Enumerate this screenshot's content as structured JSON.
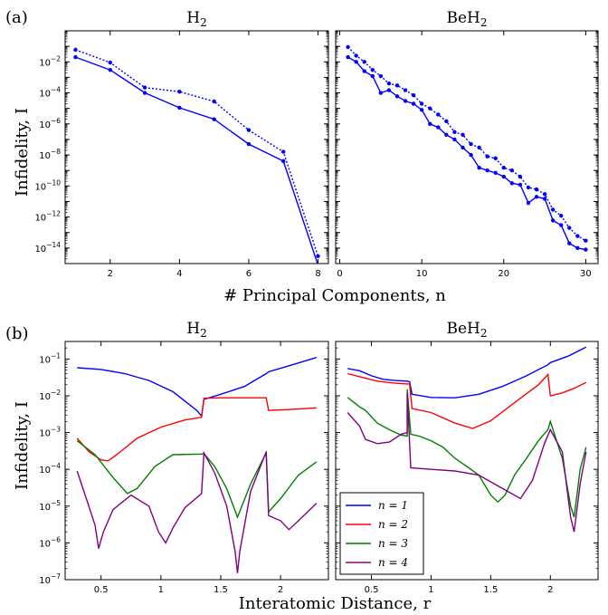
{
  "figure": {
    "panel_a_label": "(a)",
    "panel_b_label": "(b)",
    "ylabel": "Infidelity, I",
    "xlabel_a": "# Principal Components, n",
    "xlabel_b": "Interatomic Distance, r"
  },
  "chart_data": [
    {
      "id": "a-H2",
      "type": "line",
      "title": "H2",
      "yscale": "log",
      "xlim": [
        0.7,
        8.3
      ],
      "ylim": [
        1e-15,
        1
      ],
      "xticks": [
        2,
        4,
        6,
        8
      ],
      "yticks": [
        1e-14,
        1e-12,
        1e-10,
        1e-08,
        1e-06,
        0.0001,
        0.01
      ],
      "series": [
        {
          "style": "solid",
          "color": "#0000ff",
          "marker": true,
          "x": [
            1,
            2,
            3,
            4,
            5,
            6,
            7,
            8
          ],
          "y": [
            0.02,
            0.003,
            0.0001,
            1.1e-05,
            2e-06,
            5e-08,
            4e-09,
            8e-16
          ]
        },
        {
          "style": "dotted",
          "color": "#0000ff",
          "marker": true,
          "x": [
            1,
            2,
            3,
            4,
            5,
            6,
            7,
            8
          ],
          "y": [
            0.06,
            0.009,
            0.00022,
            0.00012,
            2.8e-05,
            4e-07,
            1.6e-08,
            3e-15
          ]
        }
      ]
    },
    {
      "id": "a-BeH2",
      "type": "line",
      "title": "BeH2",
      "yscale": "log",
      "xlim": [
        -0.5,
        31.5
      ],
      "ylim": [
        1e-15,
        1
      ],
      "xticks": [
        0,
        10,
        20,
        30
      ],
      "yticks": [],
      "series": [
        {
          "style": "solid",
          "color": "#0000ff",
          "marker": true,
          "x": [
            1,
            2,
            3,
            4,
            5,
            6,
            7,
            8,
            9,
            10,
            11,
            12,
            13,
            14,
            15,
            16,
            17,
            18,
            19,
            20,
            21,
            22,
            23,
            24,
            25,
            26,
            27,
            28,
            29,
            30
          ],
          "y": [
            0.02,
            0.01,
            0.0025,
            0.0012,
            0.0001,
            0.00015,
            6e-05,
            3e-05,
            2e-05,
            8e-06,
            1e-06,
            6e-07,
            2e-07,
            1e-07,
            3e-08,
            1e-08,
            1.5e-09,
            1e-09,
            7e-10,
            4e-10,
            1.5e-10,
            1.2e-10,
            8e-12,
            2e-11,
            1.5e-11,
            6e-13,
            3e-13,
            2e-14,
            1e-14,
            8e-15
          ]
        },
        {
          "style": "dotted",
          "color": "#0000ff",
          "marker": true,
          "x": [
            1,
            2,
            3,
            4,
            5,
            6,
            7,
            8,
            9,
            10,
            11,
            12,
            13,
            14,
            15,
            16,
            17,
            18,
            19,
            20,
            21,
            22,
            23,
            24,
            25,
            26,
            27,
            28,
            29,
            30
          ],
          "y": [
            0.09,
            0.025,
            0.01,
            0.003,
            0.0012,
            0.0004,
            0.0003,
            0.00015,
            7e-05,
            2e-05,
            1e-05,
            4e-06,
            1.5e-06,
            3e-07,
            2e-07,
            5e-08,
            3e-08,
            8e-09,
            6e-09,
            1.5e-09,
            1e-09,
            4e-10,
            8e-11,
            6e-11,
            3e-11,
            3e-12,
            1.2e-12,
            2e-13,
            6e-14,
            3e-14
          ]
        }
      ]
    },
    {
      "id": "b-H2",
      "type": "line",
      "title": "H2",
      "yscale": "log",
      "xlim": [
        0.2,
        2.4
      ],
      "ylim": [
        1e-07,
        0.3
      ],
      "xticks": [
        0.5,
        1.0,
        1.5,
        2.0
      ],
      "yticks": [
        1e-07,
        1e-06,
        1e-05,
        0.0001,
        0.001,
        0.01,
        0.1
      ],
      "series": [
        {
          "name": "n = 1",
          "color": "#0000ff",
          "x": [
            0.3,
            0.5,
            0.7,
            0.9,
            1.1,
            1.3,
            1.34,
            1.36,
            1.5,
            1.7,
            1.88,
            1.9,
            2.1,
            2.3
          ],
          "y": [
            0.058,
            0.052,
            0.04,
            0.026,
            0.013,
            0.004,
            0.0028,
            0.008,
            0.011,
            0.018,
            0.04,
            0.045,
            0.07,
            0.11
          ]
        },
        {
          "name": "n = 2",
          "color": "#ff0000",
          "x": [
            0.3,
            0.4,
            0.5,
            0.56,
            0.65,
            0.8,
            1.0,
            1.2,
            1.34,
            1.36,
            1.5,
            1.7,
            1.88,
            1.9,
            2.1,
            2.3
          ],
          "y": [
            0.0007,
            0.0003,
            0.00018,
            0.00017,
            0.00028,
            0.0007,
            0.0014,
            0.0022,
            0.0026,
            0.0085,
            0.0088,
            0.0088,
            0.0088,
            0.004,
            0.0043,
            0.0047
          ]
        },
        {
          "name": "n = 3",
          "color": "#008000",
          "x": [
            0.3,
            0.45,
            0.6,
            0.72,
            0.8,
            0.95,
            1.1,
            1.34,
            1.36,
            1.45,
            1.55,
            1.64,
            1.75,
            1.88,
            1.9,
            2.0,
            2.15,
            2.3
          ],
          "y": [
            0.0006,
            0.00025,
            6e-05,
            2.2e-05,
            3e-05,
            0.00012,
            0.00025,
            0.00026,
            0.00027,
            0.00012,
            3e-05,
            5e-06,
            4e-05,
            0.00028,
            7e-06,
            1.6e-05,
            7e-05,
            0.00016
          ]
        },
        {
          "name": "n = 4",
          "color": "#800080",
          "x": [
            0.3,
            0.38,
            0.45,
            0.48,
            0.52,
            0.6,
            0.75,
            0.9,
            0.98,
            1.04,
            1.1,
            1.2,
            1.34,
            1.36,
            1.45,
            1.55,
            1.62,
            1.64,
            1.66,
            1.75,
            1.88,
            1.9,
            2.0,
            2.07,
            2.15,
            2.3
          ],
          "y": [
            9e-05,
            1.5e-05,
            3e-06,
            7e-07,
            2e-06,
            8e-06,
            2e-05,
            1e-05,
            2e-06,
            1e-06,
            2.5e-06,
            9e-06,
            2.2e-05,
            0.00028,
            8e-05,
            1e-05,
            6e-07,
            1.5e-07,
            6e-07,
            2.5e-05,
            0.0003,
            5.5e-06,
            4e-06,
            2.3e-06,
            4e-06,
            1.2e-05
          ]
        }
      ]
    },
    {
      "id": "b-BeH2",
      "type": "line",
      "title": "BeH2",
      "yscale": "log",
      "xlim": [
        0.2,
        2.4
      ],
      "ylim": [
        1e-07,
        0.3
      ],
      "xticks": [
        0.5,
        1.0,
        1.5,
        2.0
      ],
      "yticks": [],
      "legend": "lower-left",
      "series": [
        {
          "name": "n = 1",
          "color": "#0000ff",
          "x": [
            0.3,
            0.4,
            0.5,
            0.6,
            0.7,
            0.8,
            0.82,
            0.84,
            1.0,
            1.2,
            1.4,
            1.6,
            1.8,
            1.98,
            2.0,
            2.15,
            2.3
          ],
          "y": [
            0.055,
            0.048,
            0.035,
            0.028,
            0.026,
            0.025,
            0.024,
            0.011,
            0.009,
            0.0088,
            0.011,
            0.018,
            0.035,
            0.07,
            0.08,
            0.12,
            0.21
          ]
        },
        {
          "name": "n = 2",
          "color": "#ff0000",
          "x": [
            0.3,
            0.45,
            0.55,
            0.7,
            0.8,
            0.82,
            0.84,
            1.0,
            1.2,
            1.35,
            1.5,
            1.7,
            1.9,
            1.98,
            2.0,
            2.1,
            2.2,
            2.3
          ],
          "y": [
            0.04,
            0.03,
            0.025,
            0.022,
            0.021,
            0.021,
            0.0045,
            0.0035,
            0.0018,
            0.0013,
            0.0021,
            0.0065,
            0.02,
            0.038,
            0.01,
            0.012,
            0.016,
            0.023
          ]
        },
        {
          "name": "n = 3",
          "color": "#008000",
          "x": [
            0.3,
            0.4,
            0.45,
            0.55,
            0.65,
            0.75,
            0.8,
            0.8,
            0.83,
            0.9,
            1.0,
            1.1,
            1.2,
            1.3,
            1.4,
            1.5,
            1.56,
            1.62,
            1.7,
            1.8,
            1.9,
            1.98,
            2.0,
            2.1,
            2.17,
            2.2,
            2.25,
            2.3
          ],
          "y": [
            0.009,
            0.005,
            0.004,
            0.0018,
            0.0012,
            0.00085,
            0.0008,
            0.015,
            0.0009,
            0.0008,
            0.0006,
            0.0004,
            0.0002,
            0.00012,
            7e-05,
            2e-05,
            1.3e-05,
            2e-05,
            7e-05,
            0.0002,
            0.0006,
            0.0012,
            0.002,
            0.0002,
            1e-05,
            5e-06,
            0.0001,
            0.0004
          ]
        },
        {
          "name": "n = 4",
          "color": "#800080",
          "x": [
            0.3,
            0.4,
            0.45,
            0.55,
            0.65,
            0.75,
            0.8,
            0.8,
            0.83,
            1.0,
            1.2,
            1.4,
            1.6,
            1.75,
            1.85,
            1.95,
            2.0,
            2.1,
            2.17,
            2.2,
            2.25,
            2.3
          ],
          "y": [
            0.0035,
            0.0015,
            0.00065,
            0.0005,
            0.00055,
            0.0009,
            0.001,
            0.012,
            0.00011,
            0.0001,
            9e-05,
            7e-05,
            3e-05,
            1.6e-05,
            5e-05,
            0.0005,
            0.0012,
            0.0003,
            5e-06,
            2e-06,
            4e-05,
            0.0003
          ]
        }
      ]
    }
  ]
}
